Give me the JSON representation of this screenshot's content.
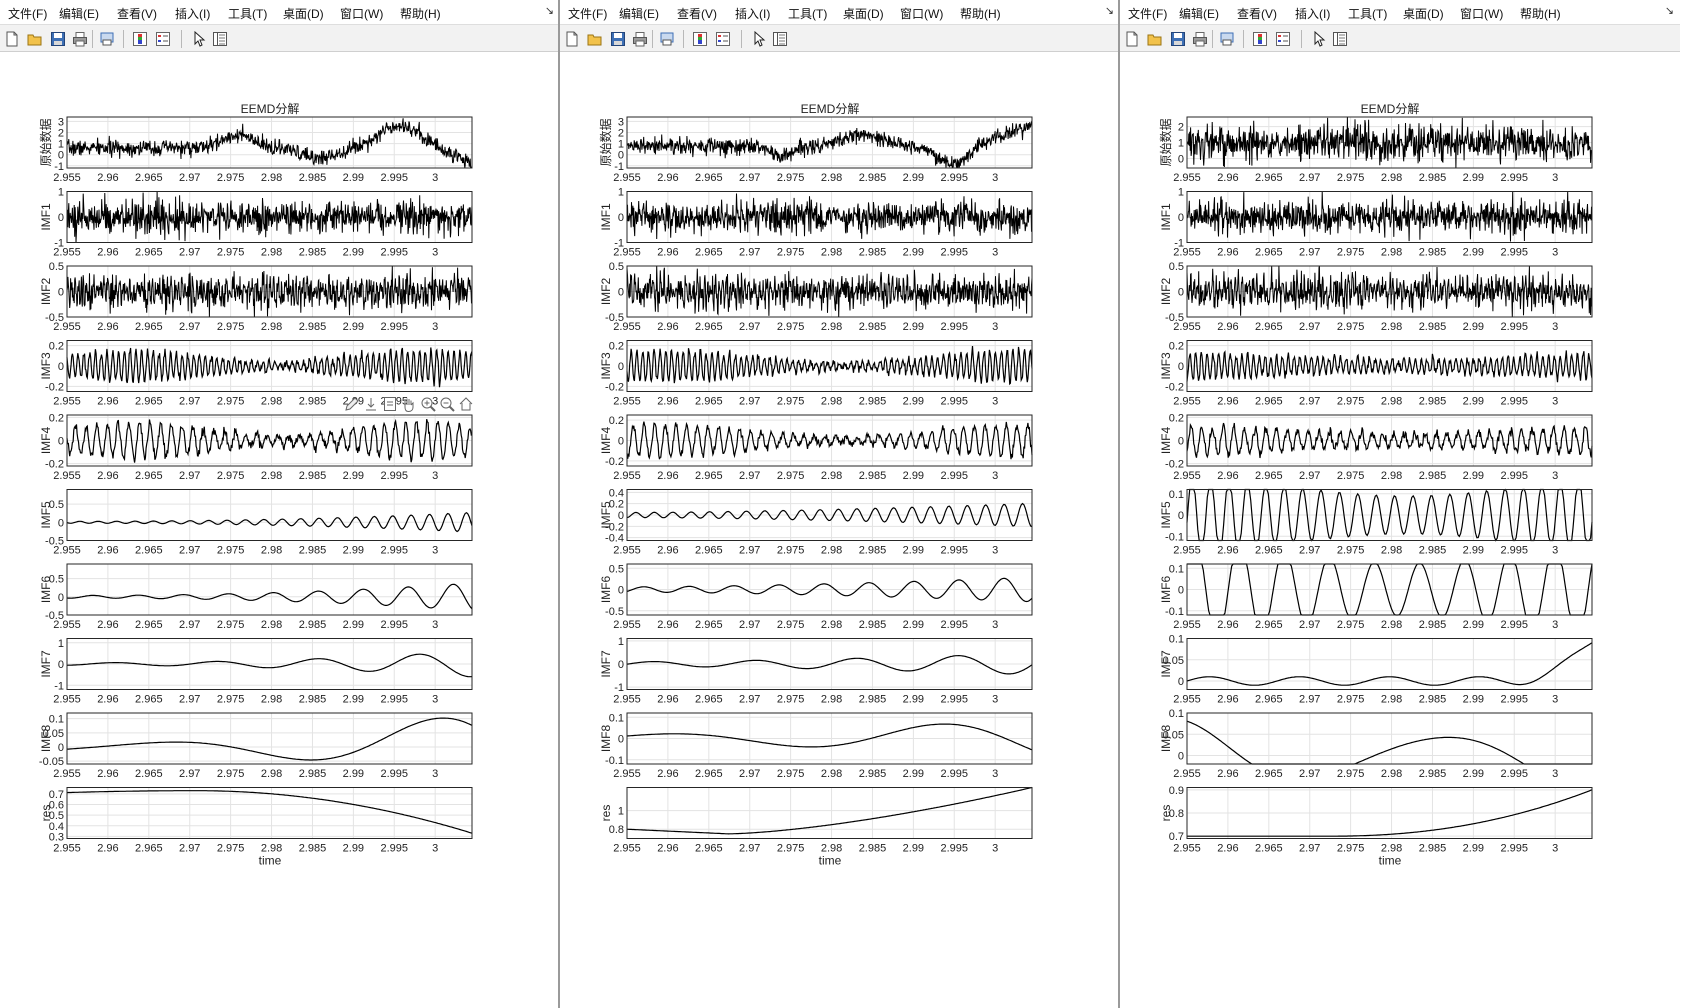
{
  "menu": [
    "文件(F)",
    "编辑(E)",
    "查看(V)",
    "插入(I)",
    "工具(T)",
    "桌面(D)",
    "窗口(W)",
    "帮助(H)"
  ],
  "menu_arrow": "↘",
  "toolbar_icons": [
    "new-figure-icon",
    "open-file-icon",
    "save-icon",
    "print-icon",
    "print-preview-icon",
    "insert-colorbar-icon",
    "insert-legend-icon",
    "edit-plot-cursor-icon",
    "property-inspector-icon"
  ],
  "axes_toolbar_icons": [
    "brush-icon",
    "data-tips-icon",
    "export-icon",
    "pan-hand-icon",
    "zoom-in-icon",
    "zoom-out-icon",
    "restore-view-home-icon"
  ],
  "plot_title": "EEMD分解",
  "xlabel": "time",
  "x_ticks": [
    "2.955",
    "2.96",
    "2.965",
    "2.97",
    "2.975",
    "2.98",
    "2.985",
    "2.99",
    "2.995",
    "3"
  ],
  "panel_labels": [
    "原始数据",
    "IMF1",
    "IMF2",
    "IMF3",
    "IMF4",
    "IMF5",
    "IMF6",
    "IMF7",
    "IMF8",
    "res"
  ],
  "windows": [
    {
      "yticks": [
        [
          "3",
          "2",
          "1",
          "0",
          "-1"
        ],
        [
          "1",
          "0",
          "-1"
        ],
        [
          "0.5",
          "0",
          "-0.5"
        ],
        [
          "0.2",
          "0",
          "-0.2"
        ],
        [
          "0.2",
          "0",
          "-0.2"
        ],
        [
          "0.5",
          "0",
          "-0.5"
        ],
        [
          "0.5",
          "0",
          "-0.5"
        ],
        [
          "1",
          "0",
          "-1"
        ],
        [
          "0.1",
          "0.05",
          "0",
          "-0.05"
        ],
        [
          "0.7",
          "0.6",
          "0.5",
          "0.4",
          "0.3"
        ]
      ]
    },
    {
      "yticks": [
        [
          "3",
          "2",
          "1",
          "0",
          "-1"
        ],
        [
          "1",
          "0",
          "-1"
        ],
        [
          "0.5",
          "0",
          "-0.5"
        ],
        [
          "0.2",
          "0",
          "-0.2"
        ],
        [
          "0.2",
          "0",
          "-0.2"
        ],
        [
          "0.4",
          "0.2",
          "0",
          "-0.2",
          "-0.4"
        ],
        [
          "0.5",
          "0",
          "-0.5"
        ],
        [
          "1",
          "0",
          "-1"
        ],
        [
          "0.1",
          "0",
          "-0.1"
        ],
        [
          "1",
          "0.8"
        ]
      ]
    },
    {
      "yticks": [
        [
          "2",
          "1",
          "0"
        ],
        [
          "1",
          "0",
          "-1"
        ],
        [
          "0.5",
          "0",
          "-0.5"
        ],
        [
          "0.2",
          "0",
          "-0.2"
        ],
        [
          "0.2",
          "0",
          "-0.2"
        ],
        [
          "0.1",
          "0",
          "-0.1"
        ],
        [
          "0.1",
          "0",
          "-0.1"
        ],
        [
          "0.1",
          "0.05",
          "0"
        ],
        [
          "0.1",
          "0.05",
          "0"
        ],
        [
          "0.9",
          "0.8",
          "0.7"
        ]
      ]
    }
  ],
  "colors": {
    "line": "#000000",
    "grid": "#e3e3e3",
    "axes_border": "#262626",
    "window_separator": "#9a9a9a"
  }
}
